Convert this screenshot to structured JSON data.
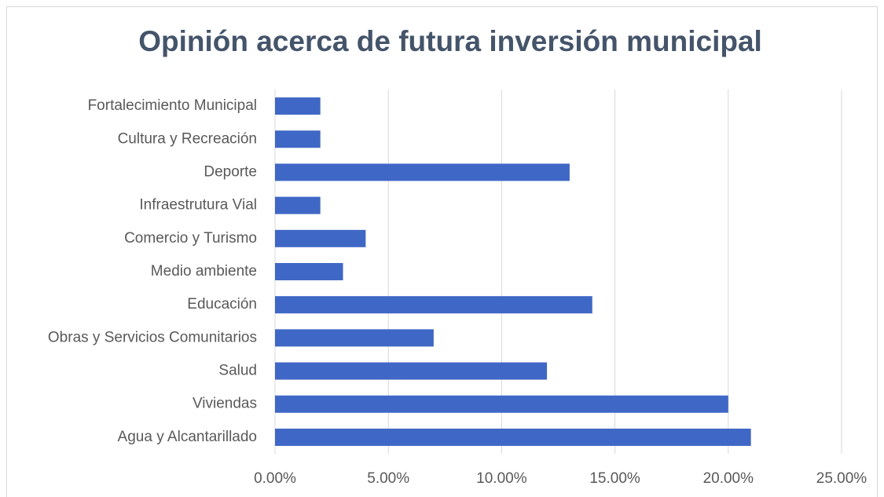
{
  "chart_data": {
    "type": "bar",
    "orientation": "horizontal",
    "title": "Opinión acerca de futura inversión municipal",
    "categories": [
      "Fortalecimiento Municipal",
      "Cultura y Recreación",
      "Deporte",
      "Infraestrutura Vial",
      "Comercio y Turismo",
      "Medio ambiente",
      "Educación",
      "Obras y Servicios Comunitarios",
      "Salud",
      "Viviendas",
      "Agua y Alcantarillado"
    ],
    "values": [
      2,
      2,
      13,
      2,
      4,
      3,
      14,
      7,
      12,
      20,
      21
    ],
    "color": "#3f67c6",
    "xlim": [
      0,
      25
    ],
    "xticks": [
      {
        "value": 0,
        "label": "0.00%"
      },
      {
        "value": 5,
        "label": "5.00%"
      },
      {
        "value": 10,
        "label": "10.00%"
      },
      {
        "value": 15,
        "label": "15.00%"
      },
      {
        "value": 20,
        "label": "20.00%"
      },
      {
        "value": 25,
        "label": "25.00%"
      }
    ],
    "grid": true
  }
}
